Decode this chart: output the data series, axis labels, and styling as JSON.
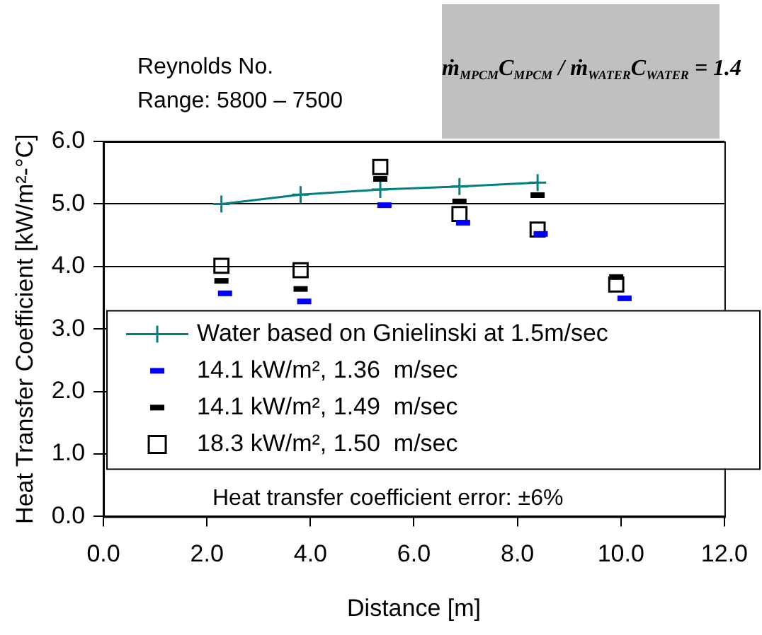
{
  "chart_data": {
    "type": "scatter",
    "xlabel": "Distance [m]",
    "ylabel": "Heat Transfer Coefficient [kW/m²-°C]",
    "xlim": [
      0,
      12
    ],
    "xticks": [
      {
        "value": 0,
        "label": "0.0"
      },
      {
        "value": 2,
        "label": "2.0"
      },
      {
        "value": 4,
        "label": "4.0"
      },
      {
        "value": 6,
        "label": "6.0"
      },
      {
        "value": 8,
        "label": "8.0"
      },
      {
        "value": 10,
        "label": "10.0"
      },
      {
        "value": 12,
        "label": "12.0"
      }
    ],
    "ylim": [
      0,
      6
    ],
    "yticks": [
      {
        "value": 0,
        "label": "0.0"
      },
      {
        "value": 1,
        "label": "1.0"
      },
      {
        "value": 2,
        "label": "2.0"
      },
      {
        "value": 3,
        "label": "3.0"
      },
      {
        "value": 4,
        "label": "4.0"
      },
      {
        "value": 5,
        "label": "5.0"
      },
      {
        "value": 6,
        "label": "6.0"
      }
    ],
    "grid": "y",
    "legend": "bottom",
    "series": [
      {
        "name": "Water based on Gnielinski at 1.5m/sec",
        "type": "line",
        "marker": "cross",
        "color": "#008080",
        "x": [
          2.28,
          3.81,
          5.35,
          6.88,
          8.39
        ],
        "values": [
          5.0,
          5.15,
          5.23,
          5.28,
          5.34
        ]
      },
      {
        "name": "14.1 kW/m², 1.36  m/sec",
        "color": "#0000ff",
        "x": [
          2.35,
          3.88,
          5.43,
          6.95,
          8.45,
          10.07
        ],
        "values": [
          3.57,
          3.44,
          4.98,
          4.7,
          4.52,
          3.49
        ]
      },
      {
        "name": "14.1 kW/m², 1.49  m/sec",
        "color": "#000000",
        "x": [
          2.28,
          3.81,
          5.35,
          6.88,
          8.39,
          9.91
        ],
        "values": [
          3.77,
          3.64,
          5.4,
          5.04,
          5.14,
          3.83
        ]
      },
      {
        "name": "18.3 kW/m², 1.50  m/sec",
        "marker": "square",
        "color": "#000000",
        "x": [
          2.28,
          3.81,
          5.35,
          6.88,
          8.39,
          9.91
        ],
        "values": [
          4.01,
          3.94,
          5.59,
          4.84,
          4.59,
          3.71
        ]
      }
    ],
    "annotations": [
      "Reynolds No.\nRange: 5800 – 7500",
      "ṁ$_{MPCM}$C$_{MPCM}$ / ṁ$_{WATER}$C$_{WATER}$ = 1.4",
      "Heat transfer coefficient error: ±6%"
    ]
  }
}
